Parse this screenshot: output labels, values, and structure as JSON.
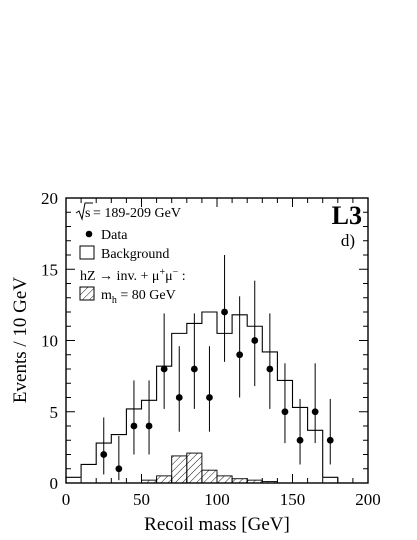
{
  "chart_data": {
    "type": "histogram",
    "xlabel": "Recoil mass  [GeV]",
    "ylabel": "Events / 10 GeV",
    "xlim": [
      0,
      200
    ],
    "ylim": [
      0,
      20
    ],
    "xticks": [
      "0",
      "50",
      "100",
      "150",
      "200"
    ],
    "yticks": [
      "0",
      "5",
      "10",
      "15",
      "20"
    ],
    "experiment_label": "L3",
    "panel_label": "d)",
    "legend": {
      "energy_prefix": "s",
      "energy_text": " = 189-209 GeV",
      "data": "Data",
      "background": "Background",
      "process_a": "hZ → inv. + μ",
      "process_b": "μ",
      "process_c": " :",
      "signal": "m",
      "signal_sub": "h",
      "signal_tail": " = 80 GeV"
    },
    "background": {
      "bin_edges": [
        0,
        10,
        20,
        30,
        40,
        50,
        60,
        70,
        80,
        90,
        100,
        110,
        120,
        130,
        140,
        150,
        160,
        170,
        180
      ],
      "values": [
        0.4,
        1.3,
        2.8,
        3.4,
        5.2,
        5.8,
        8.2,
        10.5,
        11.2,
        12.0,
        10.5,
        11.8,
        11.0,
        9.2,
        7.2,
        5.3,
        3.7,
        0.4
      ]
    },
    "signal": {
      "bin_edges": [
        0,
        10,
        20,
        30,
        40,
        50,
        60,
        70,
        80,
        90,
        100,
        110,
        120,
        130,
        140,
        150,
        160,
        170,
        180
      ],
      "values": [
        0,
        0,
        0,
        0,
        0,
        0.2,
        0.5,
        1.9,
        2.1,
        0.9,
        0.5,
        0.3,
        0.2,
        0.1,
        0,
        0,
        0,
        0
      ]
    },
    "data": {
      "x": [
        25,
        35,
        45,
        55,
        65,
        75,
        85,
        95,
        105,
        115,
        125,
        135,
        145,
        155,
        165,
        175
      ],
      "y": [
        2,
        1,
        4,
        4,
        8,
        6,
        8,
        6,
        12,
        9,
        10,
        8,
        5,
        3,
        5,
        3
      ],
      "err_low": [
        1.4,
        0.8,
        2.0,
        2.0,
        2.8,
        2.4,
        2.8,
        2.4,
        3.5,
        3.0,
        3.2,
        2.8,
        2.2,
        1.7,
        2.2,
        1.7
      ],
      "err_high": [
        2.6,
        2.3,
        3.2,
        3.2,
        3.9,
        3.6,
        3.9,
        3.6,
        4.0,
        4.1,
        4.2,
        3.9,
        3.4,
        2.9,
        3.4,
        2.9
      ]
    }
  }
}
